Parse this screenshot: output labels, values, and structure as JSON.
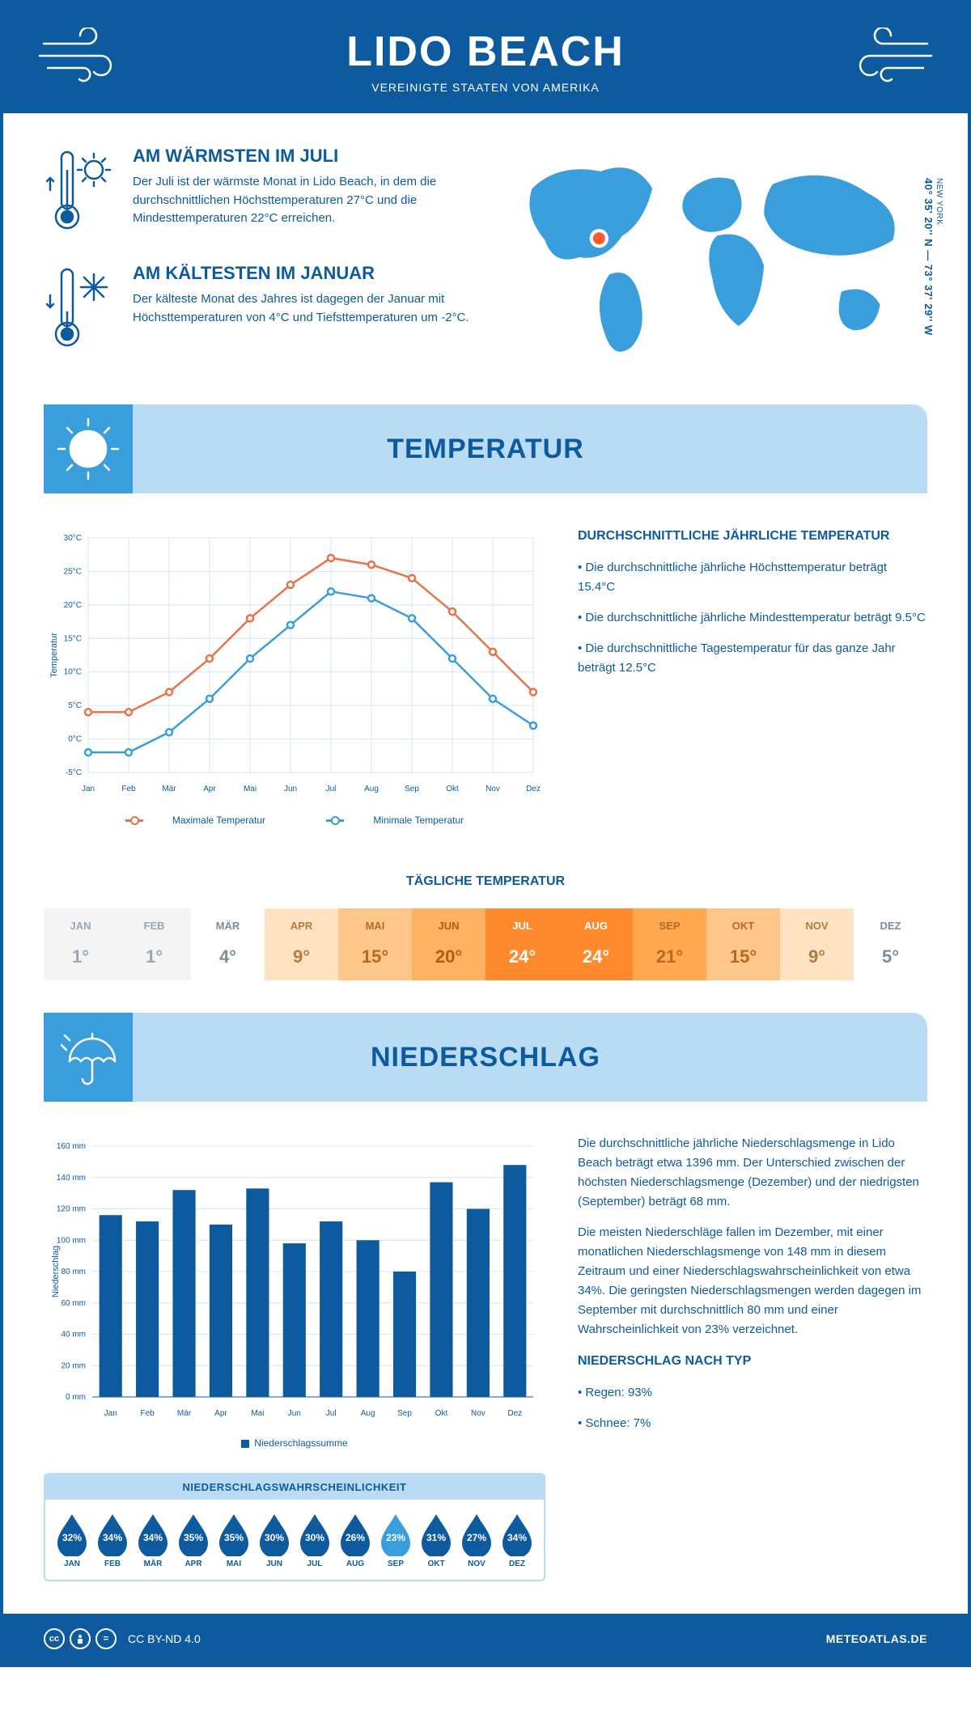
{
  "header": {
    "title": "LIDO BEACH",
    "subtitle": "VEREINIGTE STAATEN VON AMERIKA"
  },
  "coords": {
    "text": "40° 35' 20'' N — 73° 37' 29'' W",
    "region": "NEW YORK"
  },
  "warmest": {
    "title": "AM WÄRMSTEN IM JULI",
    "text": "Der Juli ist der wärmste Monat in Lido Beach, in dem die durchschnittlichen Höchsttemperaturen 27°C und die Mindesttemperaturen 22°C erreichen."
  },
  "coldest": {
    "title": "AM KÄLTESTEN IM JANUAR",
    "text": "Der kälteste Monat des Jahres ist dagegen der Januar mit Höchsttemperaturen von 4°C und Tiefsttemperaturen um -2°C."
  },
  "temp_section": {
    "heading": "TEMPERATUR",
    "chart": {
      "type": "line",
      "months": [
        "Jan",
        "Feb",
        "Mär",
        "Apr",
        "Mai",
        "Jun",
        "Jul",
        "Aug",
        "Sep",
        "Okt",
        "Nov",
        "Dez"
      ],
      "max_series": [
        4,
        4,
        7,
        12,
        18,
        23,
        27,
        26,
        24,
        19,
        13,
        7
      ],
      "min_series": [
        -2,
        -2,
        1,
        6,
        12,
        17,
        22,
        21,
        18,
        12,
        6,
        2
      ],
      "max_color": "#e8734a",
      "min_color": "#3a9edc",
      "ylim": [
        -5,
        30
      ],
      "ytick_step": 5,
      "ylabel": "Temperatur",
      "grid_color": "#d4e6f5",
      "legend_max": "Maximale Temperatur",
      "legend_min": "Minimale Temperatur"
    },
    "text_heading": "DURCHSCHNITTLICHE JÄHRLICHE TEMPERATUR",
    "bullets": [
      "• Die durchschnittliche jährliche Höchsttemperatur beträgt 15.4°C",
      "• Die durchschnittliche jährliche Mindesttemperatur beträgt 9.5°C",
      "• Die durchschnittliche Tagestemperatur für das ganze Jahr beträgt 12.5°C"
    ]
  },
  "daily_temp": {
    "heading": "TÄGLICHE TEMPERATUR",
    "months": [
      "JAN",
      "FEB",
      "MÄR",
      "APR",
      "MAI",
      "JUN",
      "JUL",
      "AUG",
      "SEP",
      "OKT",
      "NOV",
      "DEZ"
    ],
    "values": [
      "1°",
      "1°",
      "4°",
      "9°",
      "15°",
      "20°",
      "24°",
      "24°",
      "21°",
      "15°",
      "9°",
      "5°"
    ],
    "bg_colors": [
      "#f4f4f4",
      "#f4f4f4",
      "#ffffff",
      "#ffe2c2",
      "#ffc68a",
      "#ffb061",
      "#ff8a2e",
      "#ff8a2e",
      "#ffa84f",
      "#ffc68a",
      "#ffe2c2",
      "#ffffff"
    ],
    "text_colors": [
      "#9aa7b5",
      "#9aa7b5",
      "#7f8b99",
      "#b47a3f",
      "#b26a24",
      "#a95f17",
      "#ffffff",
      "#ffffff",
      "#b26a24",
      "#b26a24",
      "#b47a3f",
      "#7f8b99"
    ]
  },
  "precip_section": {
    "heading": "NIEDERSCHLAG",
    "chart": {
      "type": "bar",
      "months": [
        "Jan",
        "Feb",
        "Mär",
        "Apr",
        "Mai",
        "Jun",
        "Jul",
        "Aug",
        "Sep",
        "Okt",
        "Nov",
        "Dez"
      ],
      "values": [
        116,
        112,
        132,
        110,
        133,
        98,
        112,
        100,
        80,
        137,
        120,
        148
      ],
      "bar_color": "#0d5a9e",
      "ylim": [
        0,
        160
      ],
      "ytick_step": 20,
      "ylabel": "Niederschlag",
      "grid_color": "#d4e6f5",
      "legend": "Niederschlagssumme"
    },
    "para1": "Die durchschnittliche jährliche Niederschlagsmenge in Lido Beach beträgt etwa 1396 mm. Der Unterschied zwischen der höchsten Niederschlagsmenge (Dezember) und der niedrigsten (September) beträgt 68 mm.",
    "para2": "Die meisten Niederschläge fallen im Dezember, mit einer monatlichen Niederschlagsmenge von 148 mm in diesem Zeitraum und einer Niederschlagswahrscheinlichkeit von etwa 34%. Die geringsten Niederschlagsmengen werden dagegen im September mit durchschnittlich 80 mm und einer Wahrscheinlichkeit von 23% verzeichnet.",
    "type_heading": "NIEDERSCHLAG NACH TYP",
    "type_bullets": [
      "• Regen: 93%",
      "• Schnee: 7%"
    ],
    "prob": {
      "heading": "NIEDERSCHLAGSWAHRSCHEINLICHKEIT",
      "months": [
        "JAN",
        "FEB",
        "MÄR",
        "APR",
        "MAI",
        "JUN",
        "JUL",
        "AUG",
        "SEP",
        "OKT",
        "NOV",
        "DEZ"
      ],
      "values": [
        "32%",
        "34%",
        "34%",
        "35%",
        "35%",
        "30%",
        "30%",
        "26%",
        "23%",
        "31%",
        "27%",
        "34%"
      ],
      "colors": [
        "#0d5a9e",
        "#0d5a9e",
        "#0d5a9e",
        "#0d5a9e",
        "#0d5a9e",
        "#0d5a9e",
        "#0d5a9e",
        "#0d5a9e",
        "#3a9edc",
        "#0d5a9e",
        "#0d5a9e",
        "#0d5a9e"
      ]
    }
  },
  "footer": {
    "license": "CC BY-ND 4.0",
    "site": "METEOATLAS.DE"
  }
}
